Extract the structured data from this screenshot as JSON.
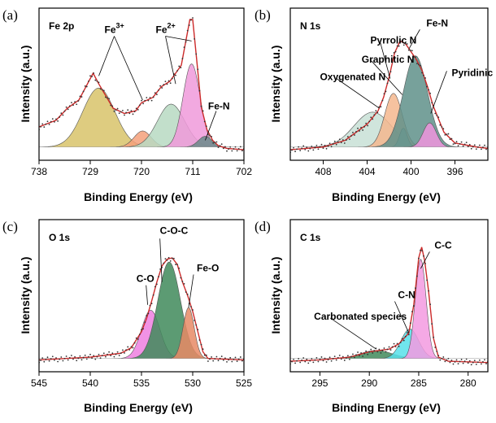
{
  "figure": "XPS spectra",
  "chart_data": [
    {
      "type": "line",
      "panel": "(a)",
      "title": "Fe 2p",
      "xlabel": "Binding Energy (eV)",
      "ylabel": "Intensity (a.u.)",
      "xlim": [
        738,
        702
      ],
      "ylim": [
        0,
        1
      ],
      "xticks": [
        738,
        729,
        720,
        711,
        702
      ],
      "xtick_labels": [
        "738",
        "729",
        "720",
        "711",
        "702"
      ],
      "fit_color": "#cc2a2a",
      "data_color": "#333333",
      "envelope": [
        [
          738,
          0.2
        ],
        [
          735,
          0.25
        ],
        [
          733,
          0.34
        ],
        [
          731,
          0.4
        ],
        [
          730,
          0.48
        ],
        [
          728.5,
          0.6
        ],
        [
          727.5,
          0.52
        ],
        [
          725,
          0.34
        ],
        [
          723,
          0.3
        ],
        [
          721,
          0.32
        ],
        [
          720,
          0.38
        ],
        [
          718,
          0.42
        ],
        [
          716.5,
          0.5
        ],
        [
          715,
          0.54
        ],
        [
          713,
          0.66
        ],
        [
          711.5,
          1.0
        ],
        [
          711,
          1.0
        ],
        [
          710.3,
          0.7
        ],
        [
          709.5,
          0.35
        ],
        [
          708.5,
          0.18
        ],
        [
          707.5,
          0.1
        ],
        [
          706.5,
          0.06
        ],
        [
          705,
          0.04
        ],
        [
          702,
          0.03
        ]
      ],
      "components": [
        {
          "name": "Fe3+ sat",
          "color": "#d8c36a",
          "center": 727.5,
          "width": 2.8,
          "height": 0.44
        },
        {
          "name": "Fe2+ sat",
          "color": "#f4a07a",
          "center": 719.8,
          "width": 1.5,
          "height": 0.12
        },
        {
          "name": "Fe3+",
          "color": "#b7d9c2",
          "center": 714.8,
          "width": 2.4,
          "height": 0.32
        },
        {
          "name": "Fe2+",
          "color": "#f09adb",
          "center": 711.2,
          "width": 1.5,
          "height": 0.62
        },
        {
          "name": "Fe-N",
          "color": "#6a8a88",
          "center": 708.8,
          "width": 1.2,
          "height": 0.08
        }
      ],
      "annotations": [
        {
          "text": "Fe",
          "sup": "3+",
          "at": [
            726.5,
            0.9
          ]
        },
        {
          "text": "Fe",
          "sup": "2+",
          "at": [
            717.5,
            0.9
          ]
        },
        {
          "text": "Fe-N",
          "at": [
            708.3,
            0.33
          ]
        }
      ]
    },
    {
      "type": "line",
      "panel": "(b)",
      "title": "N 1s",
      "xlabel": "Binding Energy (eV)",
      "ylabel": "Intensity (a.u.)",
      "xlim": [
        411,
        393
      ],
      "ylim": [
        0,
        1
      ],
      "xticks": [
        408,
        404,
        400,
        396
      ],
      "xtick_labels": [
        "408",
        "404",
        "400",
        "396"
      ],
      "fit_color": "#cc2a2a",
      "data_color": "#333333",
      "envelope": [
        [
          411,
          0.03
        ],
        [
          408,
          0.05
        ],
        [
          406,
          0.1
        ],
        [
          404,
          0.22
        ],
        [
          403,
          0.32
        ],
        [
          402.5,
          0.42
        ],
        [
          402,
          0.57
        ],
        [
          401.5,
          0.75
        ],
        [
          401,
          0.84
        ],
        [
          400.5,
          0.82
        ],
        [
          400,
          0.76
        ],
        [
          399.5,
          0.7
        ],
        [
          399,
          0.62
        ],
        [
          398.5,
          0.5
        ],
        [
          398,
          0.36
        ],
        [
          397,
          0.16
        ],
        [
          396,
          0.08
        ],
        [
          394,
          0.05
        ],
        [
          393,
          0.04
        ]
      ],
      "components": [
        {
          "name": "Oxygenated N",
          "color": "#c8e0d6",
          "center": 403.5,
          "width": 1.7,
          "height": 0.26
        },
        {
          "name": "Pyrrolic N",
          "color": "#f4b78e",
          "center": 401.6,
          "width": 0.8,
          "height": 0.4
        },
        {
          "name": "Graphitic N",
          "color": "#9bb4a8",
          "center": 400.7,
          "width": 0.35,
          "height": 0.14
        },
        {
          "name": "Fe-N",
          "color": "#5f9089",
          "center": 399.6,
          "width": 1.1,
          "height": 0.68
        },
        {
          "name": "Pyridinic N",
          "color": "#ef94dd",
          "center": 398.3,
          "width": 0.6,
          "height": 0.18
        }
      ],
      "annotations": [
        {
          "text": "Fe-N",
          "at": [
            398.6,
            0.95
          ]
        },
        {
          "text": "Pyrrolic N",
          "at": [
            403.7,
            0.82
          ]
        },
        {
          "text": "Graphitic N",
          "at": [
            404.5,
            0.68
          ]
        },
        {
          "text": "Oxygenated N",
          "at": [
            408.3,
            0.55
          ]
        },
        {
          "text": "Pyridinic N",
          "at": [
            396.3,
            0.58
          ]
        }
      ]
    },
    {
      "type": "line",
      "panel": "(c)",
      "title": "O 1s",
      "xlabel": "Binding Energy (eV)",
      "ylabel": "Intensity (a.u.)",
      "xlim": [
        545,
        525
      ],
      "ylim": [
        0,
        1
      ],
      "xticks": [
        545,
        540,
        535,
        530,
        525
      ],
      "xtick_labels": [
        "545",
        "540",
        "535",
        "530",
        "525"
      ],
      "fit_color": "#cc2a2a",
      "data_color": "#333333",
      "envelope": [
        [
          545,
          0.04
        ],
        [
          540,
          0.06
        ],
        [
          537,
          0.09
        ],
        [
          536,
          0.13
        ],
        [
          535,
          0.25
        ],
        [
          534.5,
          0.35
        ],
        [
          534,
          0.48
        ],
        [
          533.5,
          0.62
        ],
        [
          533,
          0.74
        ],
        [
          532.5,
          0.79
        ],
        [
          532,
          0.8
        ],
        [
          531.5,
          0.75
        ],
        [
          531,
          0.62
        ],
        [
          530.5,
          0.52
        ],
        [
          530,
          0.4
        ],
        [
          529.5,
          0.25
        ],
        [
          529,
          0.1
        ],
        [
          528.5,
          0.05
        ],
        [
          525,
          0.04
        ]
      ],
      "components": [
        {
          "name": "C-O",
          "color": "#ee7fe0",
          "center": 534.1,
          "width": 0.9,
          "height": 0.36
        },
        {
          "name": "C-O-C",
          "color": "#3f8a5a",
          "center": 532.3,
          "width": 1.1,
          "height": 0.72
        },
        {
          "name": "Fe-O",
          "color": "#e88a65",
          "center": 530.4,
          "width": 0.55,
          "height": 0.38
        }
      ],
      "annotations": [
        {
          "text": "C-O-C",
          "at": [
            533.2,
            0.98
          ]
        },
        {
          "text": "C-O",
          "at": [
            535.5,
            0.62
          ]
        },
        {
          "text": "Fe-O",
          "at": [
            529.6,
            0.7
          ]
        }
      ]
    },
    {
      "type": "line",
      "panel": "(d)",
      "title": "C 1s",
      "xlabel": "Binding Energy (eV)",
      "ylabel": "Intensity (a.u.)",
      "xlim": [
        298,
        278
      ],
      "ylim": [
        0,
        1
      ],
      "xticks": [
        295,
        290,
        285,
        280
      ],
      "xtick_labels": [
        "295",
        "290",
        "285",
        "280"
      ],
      "fit_color": "#cc2a2a",
      "data_color": "#333333",
      "envelope": [
        [
          298,
          0.03
        ],
        [
          295,
          0.04
        ],
        [
          292,
          0.06
        ],
        [
          290,
          0.1
        ],
        [
          289,
          0.11
        ],
        [
          288,
          0.12
        ],
        [
          287,
          0.16
        ],
        [
          286,
          0.24
        ],
        [
          285.5,
          0.45
        ],
        [
          285,
          0.8
        ],
        [
          284.7,
          0.88
        ],
        [
          284.4,
          0.78
        ],
        [
          284,
          0.55
        ],
        [
          283.5,
          0.2
        ],
        [
          283,
          0.06
        ],
        [
          282,
          0.03
        ],
        [
          278,
          0.02
        ]
      ],
      "components": [
        {
          "name": "Carbonated species",
          "color": "#3f8a5a",
          "center": 289.3,
          "width": 1.6,
          "height": 0.06
        },
        {
          "name": "C-N",
          "color": "#57e0ea",
          "center": 285.9,
          "width": 0.9,
          "height": 0.22
        },
        {
          "name": "C-C",
          "color": "#f39ae0",
          "center": 284.8,
          "width": 0.55,
          "height": 0.74
        }
      ],
      "annotations": [
        {
          "text": "C-C",
          "at": [
            283.4,
            0.87
          ]
        },
        {
          "text": "C-N",
          "at": [
            287.1,
            0.5
          ]
        },
        {
          "text": "Carbonated species",
          "at": [
            295.6,
            0.34
          ]
        }
      ]
    }
  ]
}
